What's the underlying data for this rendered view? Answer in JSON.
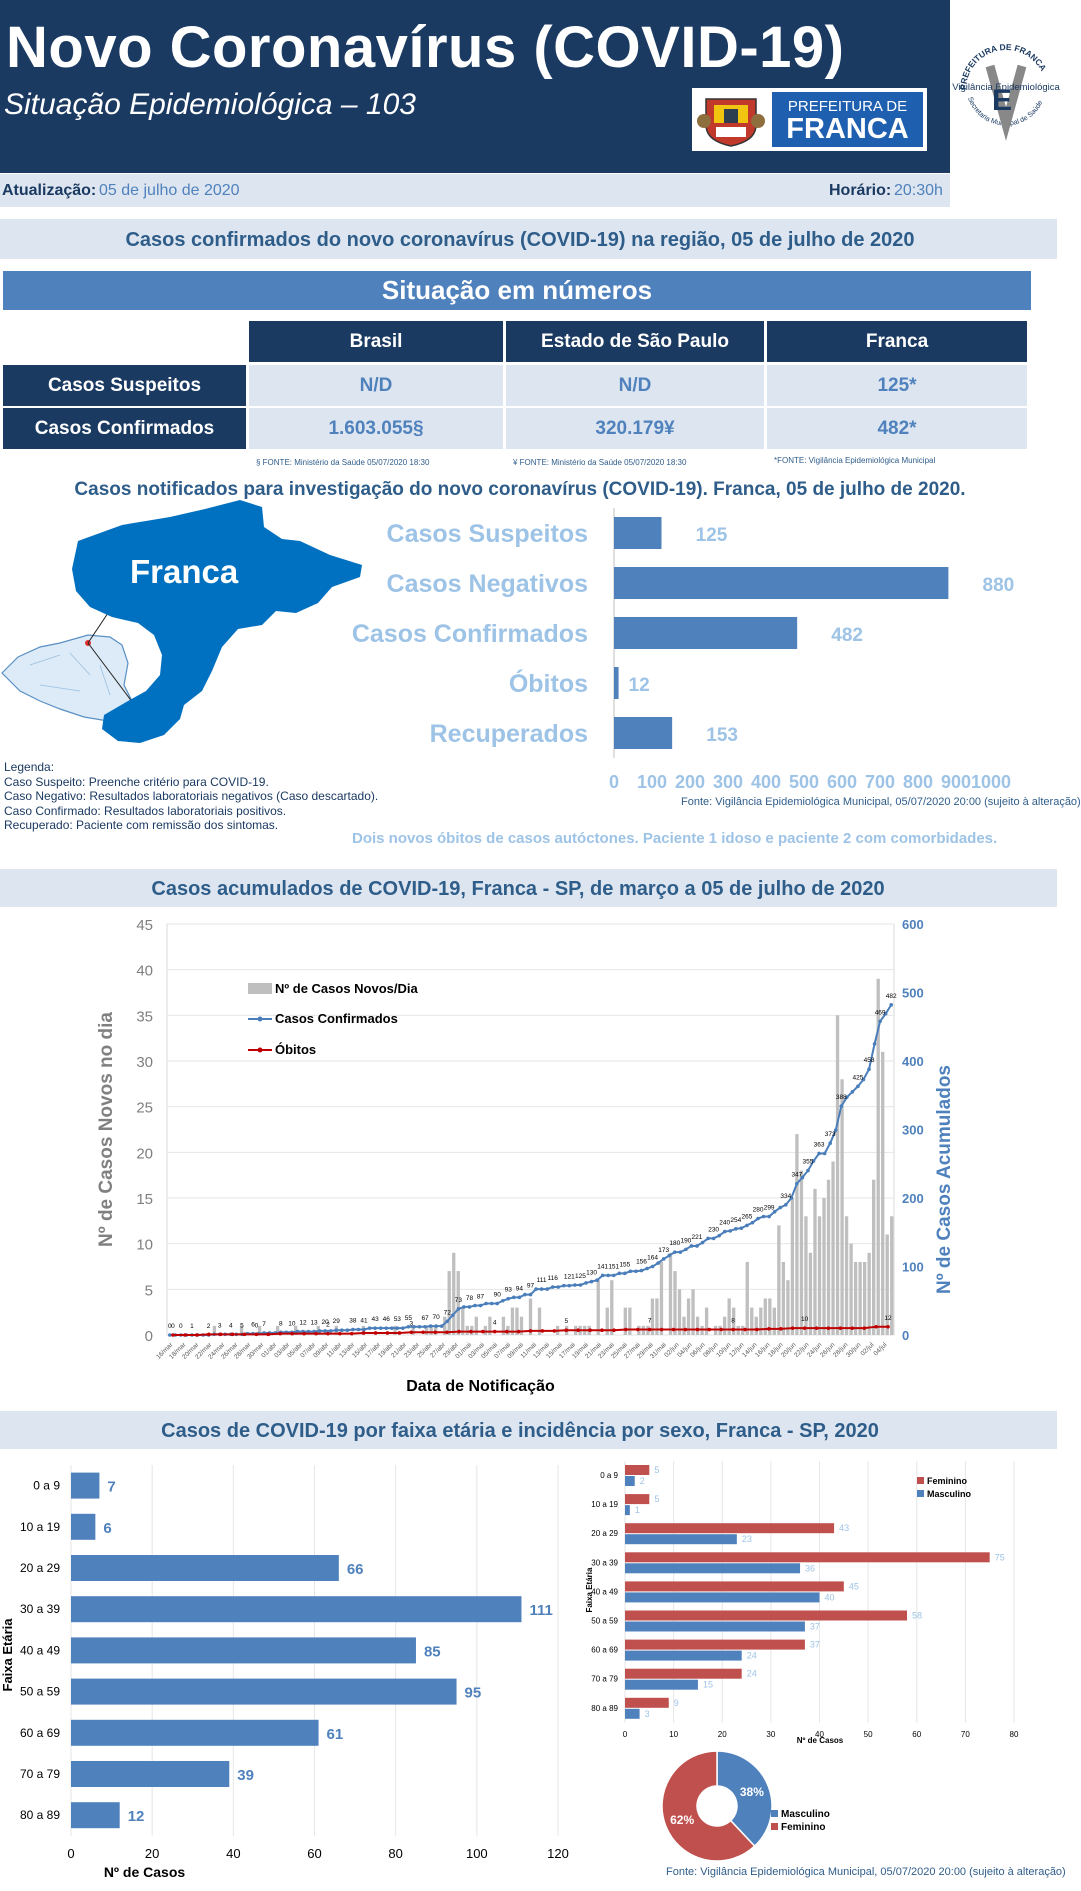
{
  "header": {
    "title": "Novo Coronavírus (COVID-19)",
    "subtitle": "Situação Epidemiológica – 103",
    "prefeitura_logo_top": "PREFEITURA DE",
    "prefeitura_logo_big": "FRANCA",
    "vigilancia_logo_top": "PREFEITURA DE FRANCA",
    "vigilancia_logo_mid": "Vigilância Epidemiológica",
    "vigilancia_logo_bottom": "Secretaria Municipal de Saúde"
  },
  "update": {
    "atualizacao_label": "Atualização:",
    "atualizacao_value": "05 de julho de 2020",
    "horario_label": "Horário:",
    "horario_value": "20:30h"
  },
  "section1": {
    "title": "Casos confirmados do novo coronavírus (COVID-19) na região, 05 de julho de 2020",
    "banner": "Situação em números",
    "columns": [
      "Brasil",
      "Estado de São Paulo",
      "Franca"
    ],
    "rows": [
      {
        "label": "Casos Suspeitos",
        "values": [
          "N/D",
          "N/D",
          "125*"
        ]
      },
      {
        "label": "Casos Confirmados",
        "values": [
          "1.603.055§",
          "320.179¥",
          "482*"
        ]
      }
    ],
    "footnotes": [
      "§ FONTE: Ministério da Saúde 05/07/2020 18:30",
      "¥ FONTE: Ministério da Saúde 05/07/2020 18:30",
      "*FONTE: Vigilância Epidemiológica Municipal"
    ]
  },
  "section2": {
    "title": "Casos notificados para investigação do novo coronavírus (COVID-19). Franca, 05 de julho de 2020.",
    "map_label": "Franca",
    "legenda": [
      "Legenda:",
      "Caso Suspeito: Preenche critério para COVID-19.",
      "Caso Negativo: Resultados laboratoriais negativos (Caso descartado).",
      "Caso Confirmado: Resultados laboratoriais positivos.",
      "Recuperado: Paciente com remissão dos sintomas."
    ],
    "source": "Fonte: Vigilância Epidemiológica Municipal, 05/07/2020 20:00  (sujeito à alteração)",
    "note": "Dois novos óbitos de casos autóctones.  Paciente 1 idoso e paciente 2 com comorbidades."
  },
  "section3": {
    "title": "Casos acumulados de COVID-19, Franca - SP, de março a 05 de julho de 2020"
  },
  "section4": {
    "title": "Casos de COVID-19 por faixa etária e incidência por sexo, Franca - SP, 2020",
    "source": "Fonte: Vigilância Epidemiológica Municipal, 05/07/2020 20:00 (sujeito à alteração)"
  },
  "colors": {
    "navy": "#1b3a62",
    "blue": "#4f81bd",
    "light_blue_text": "#9dc3e6",
    "pale": "#dde6f0",
    "red": "#c0504d",
    "map_blue": "#0070c0"
  },
  "chart_data": [
    {
      "type": "bar",
      "orientation": "horizontal",
      "categories": [
        "Casos Suspeitos",
        "Casos Negativos",
        "Casos Confirmados",
        "Óbitos",
        "Recuperados"
      ],
      "values": [
        125,
        880,
        482,
        12,
        153
      ],
      "xlim": [
        0,
        1000
      ],
      "xticks": [
        "0",
        "100",
        "200",
        "300",
        "400",
        "500",
        "600",
        "700",
        "800",
        "9001000"
      ]
    },
    {
      "type": "bar",
      "combo": "bar+line",
      "xlabel": "Data de Notificação",
      "ylabel": "Nº de Casos Novos no dia",
      "y2label": "Nº de Casos Acumulados",
      "ylim": [
        0,
        45
      ],
      "y2lim": [
        0,
        600
      ],
      "yticks": [
        "0",
        "5",
        "10",
        "15",
        "20",
        "25",
        "30",
        "35",
        "40",
        "45"
      ],
      "y2ticks": [
        "0",
        "100",
        "200",
        "300",
        "400",
        "500",
        "600"
      ],
      "x_tick_labels": [
        "16/mar",
        "18/mar",
        "20/mar",
        "22/mar",
        "24/mar",
        "26/mar",
        "28/mar",
        "30/mar",
        "01/abr",
        "03/abr",
        "05/abr",
        "07/abr",
        "09/abr",
        "11/abr",
        "13/abr",
        "15/abr",
        "17/abr",
        "19/abr",
        "21/abr",
        "23/abr",
        "25/abr",
        "27/abr",
        "29/abr",
        "01/mai",
        "03/mai",
        "05/mai",
        "07/mai",
        "09/mai",
        "11/mai",
        "13/mai",
        "15/mai",
        "17/mai",
        "19/mai",
        "21/mai",
        "23/mai",
        "25/mai",
        "27/mai",
        "29/mai",
        "31/mai",
        "02/jun",
        "04/jun",
        "06/jun",
        "08/jun",
        "10/jun",
        "12/jun",
        "14/jun",
        "16/jun",
        "18/jun",
        "20/jun",
        "22/jun",
        "24/jun",
        "26/jun",
        "28/jun",
        "30/jun",
        "02/jul",
        "04/jul"
      ],
      "series": [
        {
          "name": "Nº de Casos Novos/Dia",
          "type": "bar",
          "axis": "left",
          "values": [
            0,
            0,
            0,
            0,
            0,
            0,
            0,
            0,
            0,
            0,
            1,
            0,
            0,
            0,
            0,
            0,
            1,
            0,
            0,
            0,
            1,
            0,
            0,
            0,
            1,
            0,
            0,
            0,
            1,
            0,
            0,
            0,
            0,
            1,
            0,
            0,
            0,
            1,
            0,
            0,
            0,
            0,
            0,
            1,
            0,
            0,
            0,
            0,
            0,
            0,
            1,
            0,
            0,
            0,
            1,
            0,
            0,
            1,
            1,
            1,
            0,
            2,
            7,
            9,
            7,
            3,
            1,
            1,
            2,
            0,
            1,
            2,
            0,
            0,
            2,
            1,
            3,
            3,
            2,
            0,
            4,
            0,
            3,
            0,
            0,
            0,
            1,
            0,
            1,
            0,
            1,
            1,
            1,
            1,
            0,
            6,
            0,
            3,
            6,
            0,
            0,
            3,
            3,
            0,
            1,
            1,
            1,
            4,
            4,
            8,
            0,
            9,
            7,
            5,
            2,
            4,
            5,
            2,
            1,
            3,
            0,
            1,
            1,
            2,
            4,
            3,
            1,
            1,
            8,
            3,
            2,
            3,
            4,
            4,
            3,
            12,
            8,
            6,
            15,
            22,
            18,
            13,
            9,
            16,
            13,
            15,
            17,
            19,
            35,
            28,
            13,
            10,
            8,
            8,
            8,
            9,
            17,
            39,
            31,
            11,
            13
          ]
        },
        {
          "name": "Casos Confirmados",
          "type": "line",
          "axis": "right",
          "labels": [
            "0",
            "0",
            "1",
            "2",
            "3",
            "4",
            "5",
            "6",
            "7",
            "8",
            "10",
            "12",
            "13",
            "20",
            "29",
            "38",
            "41",
            "43",
            "46",
            "53",
            "55",
            "67",
            "70",
            "72",
            "73",
            "78",
            "87",
            "90",
            "93",
            "94",
            "97",
            "111",
            "116",
            "121",
            "125",
            "130",
            "141",
            "151",
            "155",
            "156",
            "164",
            "173",
            "180",
            "190",
            "221",
            "230",
            "240",
            "254",
            "265",
            "280",
            "299",
            "334",
            "347",
            "355",
            "363",
            "373",
            "388",
            "425",
            "458",
            "469",
            "482"
          ],
          "values": [
            0,
            0,
            0,
            0,
            0,
            0,
            0,
            0,
            1,
            1,
            1,
            1,
            1,
            1,
            2,
            2,
            2,
            3,
            3,
            3,
            4,
            4,
            4,
            5,
            5,
            5,
            5,
            6,
            6,
            6,
            7,
            7,
            7,
            8,
            8,
            8,
            10,
            10,
            10,
            10,
            10,
            10,
            10,
            12,
            12,
            12,
            12,
            13,
            13,
            13,
            20,
            29,
            38,
            41,
            41,
            43,
            43,
            46,
            46,
            46,
            50,
            53,
            55,
            55,
            59,
            59,
            67,
            67,
            67,
            70,
            70,
            72,
            72,
            73,
            73,
            76,
            78,
            80,
            87,
            87,
            87,
            90,
            90,
            93,
            93,
            94,
            97,
            100,
            105,
            111,
            116,
            121,
            121,
            125,
            130,
            130,
            135,
            141,
            141,
            145,
            151,
            152,
            155,
            156,
            160,
            164,
            170,
            173,
            173,
            180,
            186,
            190,
            200,
            221,
            230,
            240,
            254,
            265,
            265,
            280,
            299,
            334,
            347,
            355,
            363,
            373,
            388,
            425,
            458,
            469,
            482
          ]
        },
        {
          "name": "Óbitos",
          "type": "line",
          "axis": "right",
          "labels": [
            "0",
            "0",
            "2",
            "3",
            "4",
            "5",
            "7",
            "8",
            "10",
            "12"
          ],
          "values": [
            0,
            0,
            0,
            1,
            1,
            1,
            1,
            1,
            1,
            2,
            2,
            2,
            2,
            2,
            2,
            2,
            3,
            3,
            3,
            3,
            4,
            4,
            4,
            4,
            5,
            5,
            5,
            5,
            5,
            5,
            6,
            6,
            6,
            7,
            7,
            7,
            7,
            7,
            8,
            8,
            8,
            8,
            8,
            8,
            8,
            8,
            8,
            8,
            8,
            8,
            9,
            9,
            10,
            10,
            10,
            10,
            10,
            10,
            10,
            12,
            12
          ]
        }
      ]
    },
    {
      "type": "bar",
      "orientation": "horizontal",
      "xlabel": "Nº de Casos",
      "ylabel": "Faixa Etária",
      "categories": [
        "0 a 9",
        "10 a 19",
        "20 a 29",
        "30 a 39",
        "40 a 49",
        "50 a 59",
        "60  a 69",
        "70 a 79",
        "80 a 89"
      ],
      "values": [
        7,
        6,
        66,
        111,
        85,
        95,
        61,
        39,
        12
      ],
      "xlim": [
        0,
        120
      ],
      "xticks": [
        "0",
        "20",
        "40",
        "60",
        "80",
        "100",
        "120"
      ]
    },
    {
      "type": "bar",
      "orientation": "horizontal",
      "xlabel": "Nº de Casos",
      "ylabel": "Faixa Etária",
      "categories": [
        "0 a 9",
        "10 a 19",
        "20 a 29",
        "30 a 39",
        "40 a 49",
        "50 a 59",
        "60 a 69",
        "70 a 79",
        "80 a 89"
      ],
      "series": [
        {
          "name": "Feminino",
          "color": "#c0504d",
          "values": [
            5,
            5,
            43,
            75,
            45,
            58,
            37,
            24,
            9
          ]
        },
        {
          "name": "Masculino",
          "color": "#4f81bd",
          "values": [
            2,
            1,
            23,
            36,
            40,
            37,
            24,
            15,
            3
          ]
        }
      ],
      "xlim": [
        0,
        80
      ],
      "xticks": [
        "0",
        "10",
        "20",
        "30",
        "40",
        "50",
        "60",
        "70",
        "80"
      ]
    },
    {
      "type": "pie",
      "donut": true,
      "categories": [
        "Masculino",
        "Feminino"
      ],
      "values": [
        38,
        62
      ],
      "labels": [
        "38%",
        "62%"
      ],
      "colors": [
        "#4f81bd",
        "#c0504d"
      ]
    }
  ]
}
